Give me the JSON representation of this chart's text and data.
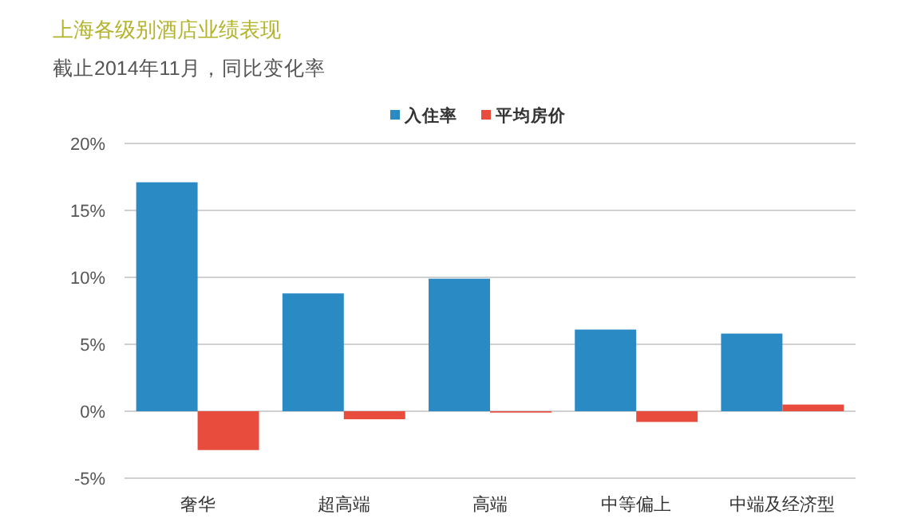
{
  "chart_data": {
    "type": "bar",
    "title": "上海各级别酒店业绩表现",
    "subtitle": "截止2014年11月，同比变化率",
    "categories": [
      "奢华",
      "超高端",
      "高端",
      "中等偏上",
      "中端及经济型"
    ],
    "series": [
      {
        "name": "入住率",
        "color": "#2a8ac4",
        "values": [
          17.1,
          8.8,
          9.9,
          6.1,
          5.8
        ]
      },
      {
        "name": "平均房价",
        "color": "#e84c3d",
        "values": [
          -2.9,
          -0.6,
          -0.1,
          -0.8,
          0.5
        ]
      }
    ],
    "ylim": [
      -5,
      20
    ],
    "yticks": [
      {
        "value": -5,
        "label": "-5%"
      },
      {
        "value": 0,
        "label": "0%"
      },
      {
        "value": 5,
        "label": "5%"
      },
      {
        "value": 10,
        "label": "10%"
      },
      {
        "value": 15,
        "label": "15%"
      },
      {
        "value": 20,
        "label": "20%"
      }
    ],
    "grid": "y",
    "legend": "top"
  }
}
